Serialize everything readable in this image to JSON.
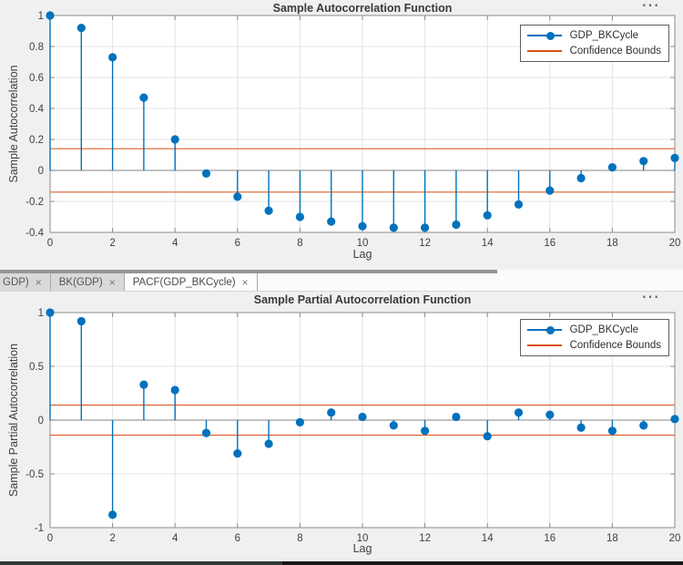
{
  "colors": {
    "series_blue": "#0072BD",
    "bounds_orange": "#D95319",
    "figure_background": "#f0f0f0",
    "plot_background": "#ffffff"
  },
  "figure1": {
    "ellipsis": "⋯"
  },
  "figure2": {
    "ellipsis": "⋯"
  },
  "tab_bar": {
    "tabs": [
      {
        "label": "GDP)",
        "close": "×",
        "active": false
      },
      {
        "label": "BK(GDP)",
        "close": "×",
        "active": false
      },
      {
        "label": "PACF(GDP_BKCycle)",
        "close": "×",
        "active": true
      }
    ]
  },
  "chart_data": [
    {
      "type": "stem",
      "title": "Sample Autocorrelation Function",
      "xlabel": "Lag",
      "ylabel": "Sample Autocorrelation",
      "legend": [
        "GDP_BKCycle",
        "Confidence Bounds"
      ],
      "legend_position": "northeast",
      "grid": true,
      "x": [
        0,
        1,
        2,
        3,
        4,
        5,
        6,
        7,
        8,
        9,
        10,
        11,
        12,
        13,
        14,
        15,
        16,
        17,
        18,
        19,
        20
      ],
      "values": [
        1.0,
        0.92,
        0.73,
        0.47,
        0.2,
        -0.02,
        -0.17,
        -0.26,
        -0.3,
        -0.33,
        -0.36,
        -0.37,
        -0.37,
        -0.35,
        -0.29,
        -0.22,
        -0.13,
        -0.05,
        0.02,
        0.06,
        0.08
      ],
      "confidence_bounds": [
        0.14,
        -0.14
      ],
      "xlim": [
        0,
        20
      ],
      "ylim": [
        -0.4,
        1
      ],
      "xticks": [
        0,
        2,
        4,
        6,
        8,
        10,
        12,
        14,
        16,
        18,
        20
      ],
      "yticks": [
        1,
        0.8,
        0.6,
        0.4,
        0.2,
        0,
        -0.2,
        -0.4
      ],
      "series_color": "#0072BD",
      "bounds_color": "#D95319"
    },
    {
      "type": "stem",
      "title": "Sample Partial Autocorrelation Function",
      "xlabel": "Lag",
      "ylabel": "Sample Partial Autocorrelation",
      "legend": [
        "GDP_BKCycle",
        "Confidence Bounds"
      ],
      "legend_position": "northeast",
      "grid": true,
      "x": [
        0,
        1,
        2,
        3,
        4,
        5,
        6,
        7,
        8,
        9,
        10,
        11,
        12,
        13,
        14,
        15,
        16,
        17,
        18,
        19,
        20
      ],
      "values": [
        1.0,
        0.92,
        -0.88,
        0.33,
        0.28,
        -0.12,
        -0.31,
        -0.22,
        -0.02,
        0.07,
        0.03,
        -0.05,
        -0.1,
        0.03,
        -0.15,
        0.07,
        0.05,
        -0.07,
        -0.1,
        -0.05,
        0.01
      ],
      "confidence_bounds": [
        0.14,
        -0.14
      ],
      "xlim": [
        0,
        20
      ],
      "ylim": [
        -1,
        1
      ],
      "xticks": [
        0,
        2,
        4,
        6,
        8,
        10,
        12,
        14,
        16,
        18,
        20
      ],
      "yticks": [
        1,
        0.5,
        0,
        -0.5,
        -1
      ],
      "series_color": "#0072BD",
      "bounds_color": "#D95319"
    }
  ]
}
